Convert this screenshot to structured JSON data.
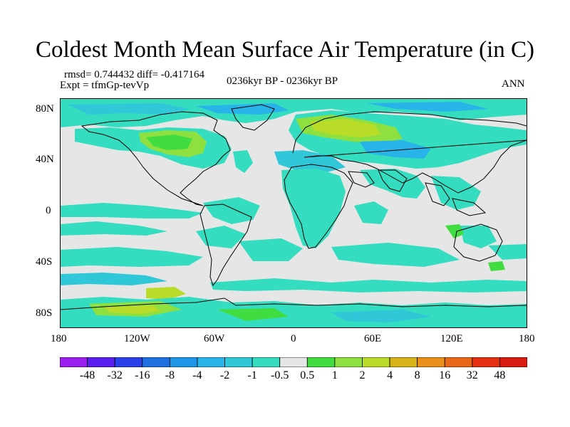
{
  "title": "Coldest Month Mean Surface Air Temperature (in C)",
  "stats": "rmsd= 0.744432 diff= -0.417164",
  "experiment": "Expt = tfmGp-tevVp",
  "period": "0236kyr BP - 0236kyr BP",
  "season": "ANN",
  "lat_ticks": [
    "80N",
    "40N",
    "0",
    "40S",
    "80S"
  ],
  "lon_ticks": [
    "180",
    "120W",
    "60W",
    "0",
    "60E",
    "120E",
    "180"
  ],
  "colorbar": {
    "labels": [
      "-48",
      "-32",
      "-16",
      "-8",
      "-4",
      "-2",
      "-1",
      "-0.5",
      "0.5",
      "1",
      "2",
      "4",
      "8",
      "16",
      "32",
      "48"
    ],
    "colors": [
      "#9a1ef0",
      "#5a1ef0",
      "#2a40e8",
      "#1e70e0",
      "#1e96e8",
      "#28b4e8",
      "#30c8d8",
      "#34dcc0",
      "#e6e6e6",
      "#40dc40",
      "#8ee040",
      "#b8dc28",
      "#d8b418",
      "#e89018",
      "#e86818",
      "#e43010",
      "#d81a10"
    ]
  },
  "palette": {
    "background": "#e6e6e6",
    "cyan": "#34dcc0",
    "teal": "#30c8d8",
    "blue": "#28b4e8",
    "green": "#40dc40",
    "yellowgreen": "#8ee040",
    "coast": "#000000"
  }
}
